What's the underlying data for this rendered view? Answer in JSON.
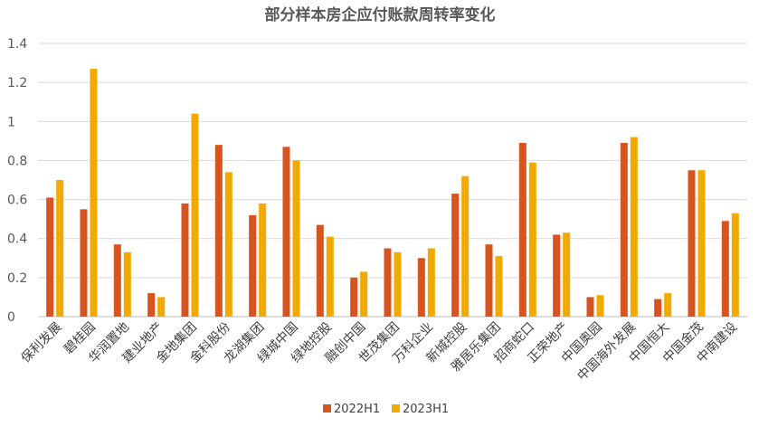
{
  "chart_data": {
    "type": "bar",
    "title": "部分样本房企应付账款周转率变化",
    "xlabel": "",
    "ylabel": "",
    "ylim": [
      0,
      1.4
    ],
    "yticks": [
      "0",
      "0.2",
      "0.4",
      "0.6",
      "0.8",
      "1",
      "1.2",
      "1.4"
    ],
    "grid": true,
    "legend_position": "bottom",
    "categories": [
      "保利发展",
      "碧桂园",
      "华润置地",
      "建业地产",
      "金地集团",
      "金科股份",
      "龙湖集团",
      "绿城中国",
      "绿地控股",
      "融创中国",
      "世茂集团",
      "万科企业",
      "新城控股",
      "雅居乐集团",
      "招商蛇口",
      "正荣地产",
      "中国奥园",
      "中国海外发展",
      "中国恒大",
      "中国金茂",
      "中南建设"
    ],
    "series": [
      {
        "name": "2022H1",
        "color": "#d9531e",
        "values": [
          0.61,
          0.55,
          0.37,
          0.12,
          0.58,
          0.88,
          0.52,
          0.87,
          0.47,
          0.2,
          0.35,
          0.3,
          0.63,
          0.37,
          0.89,
          0.42,
          0.1,
          0.89,
          0.09,
          0.75,
          0.49
        ]
      },
      {
        "name": "2023H1",
        "color": "#f2a900",
        "values": [
          0.7,
          1.27,
          0.33,
          0.1,
          1.04,
          0.74,
          0.58,
          0.8,
          0.41,
          0.23,
          0.33,
          0.35,
          0.72,
          0.31,
          0.79,
          0.43,
          0.11,
          0.92,
          0.12,
          0.75,
          0.53
        ]
      }
    ]
  }
}
